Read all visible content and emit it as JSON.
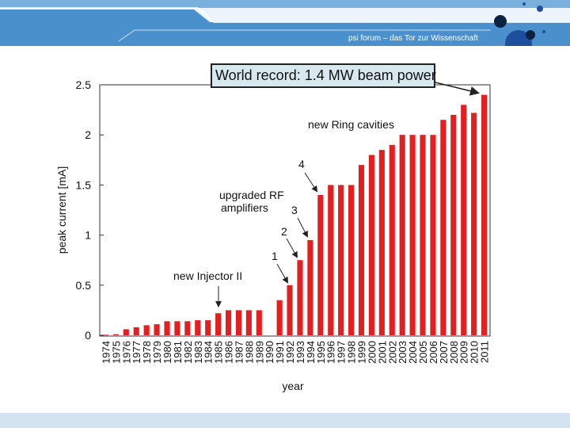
{
  "header": {
    "tagline": "psi forum – das Tor zur Wissenschaft",
    "band_color": "#4a90cc",
    "dot_color": "#1e4f9c"
  },
  "callout": {
    "text": "World record: 1.4 MW beam power"
  },
  "chart_data": {
    "type": "bar",
    "xlabel": "year",
    "ylabel": "peak current [mA]",
    "ylim": [
      0,
      2.5
    ],
    "yticks": [
      0,
      0.5,
      1,
      1.5,
      2,
      2.5
    ],
    "ytick_labels": [
      "0",
      "0.5",
      "1",
      "1.5",
      "2",
      "2.5"
    ],
    "grid": false,
    "bar_color": "#e41f1f",
    "categories": [
      "1974",
      "1975",
      "1976",
      "1977",
      "1978",
      "1979",
      "1980",
      "1981",
      "1982",
      "1983",
      "1984",
      "1985",
      "1986",
      "1987",
      "1988",
      "1989",
      "1990",
      "1991",
      "1992",
      "1993",
      "1994",
      "1995",
      "1996",
      "1997",
      "1998",
      "1999",
      "2000",
      "2001",
      "2002",
      "2003",
      "2004",
      "2005",
      "2006",
      "2007",
      "2008",
      "2009",
      "2010",
      "2011"
    ],
    "values": [
      0.005,
      0.01,
      0.06,
      0.08,
      0.1,
      0.11,
      0.14,
      0.14,
      0.14,
      0.15,
      0.15,
      0.22,
      0.25,
      0.25,
      0.25,
      0.25,
      0,
      0.35,
      0.5,
      0.75,
      0.95,
      1.4,
      1.5,
      1.5,
      1.5,
      1.7,
      1.8,
      1.85,
      1.9,
      2.0,
      2.0,
      2.0,
      2.0,
      2.15,
      2.2,
      2.3,
      2.22,
      2.4
    ],
    "annotations": [
      {
        "text": "new Injector II",
        "year": "1985"
      },
      {
        "text": "1",
        "year": "1992"
      },
      {
        "text": "2",
        "year": "1994"
      },
      {
        "text": "3",
        "year": "1995"
      },
      {
        "text": "4",
        "year": "1996"
      },
      {
        "text": "upgraded RF",
        "year": "1995"
      },
      {
        "text": "amplifiers",
        "year": "1995"
      },
      {
        "text": "new Ring cavities",
        "year": "2000"
      }
    ]
  }
}
